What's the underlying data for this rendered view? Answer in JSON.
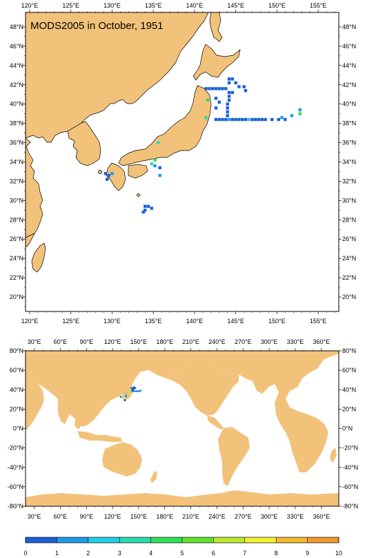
{
  "map1": {
    "title": "MODS2005 in October, 1951",
    "lon_labels": [
      "120°E",
      "125°E",
      "130°E",
      "135°E",
      "140°E",
      "145°E",
      "150°E",
      "155°E"
    ],
    "lat_labels": [
      "48°N",
      "46°N",
      "44°N",
      "42°N",
      "40°N",
      "38°N",
      "36°N",
      "34°N",
      "32°N",
      "30°N",
      "28°N",
      "26°N",
      "24°N",
      "22°N",
      "20°N"
    ],
    "lon_range": [
      119.5,
      157.5
    ],
    "lat_range": [
      18.5,
      49.5
    ],
    "land_color": "#f2c27a",
    "observations": [
      {
        "lon": 141.4,
        "lat": 41.6,
        "v": 0.5
      },
      {
        "lon": 141.8,
        "lat": 41.6,
        "v": 0.5
      },
      {
        "lon": 142.2,
        "lat": 41.6,
        "v": 0.5
      },
      {
        "lon": 142.6,
        "lat": 41.6,
        "v": 0.5
      },
      {
        "lon": 143.0,
        "lat": 41.6,
        "v": 0.5
      },
      {
        "lon": 143.4,
        "lat": 41.6,
        "v": 0.5
      },
      {
        "lon": 143.8,
        "lat": 41.6,
        "v": 0.5
      },
      {
        "lon": 144.2,
        "lat": 42.6,
        "v": 0.5
      },
      {
        "lon": 144.6,
        "lat": 42.6,
        "v": 0.5
      },
      {
        "lon": 144.2,
        "lat": 42.2,
        "v": 0.5
      },
      {
        "lon": 145.0,
        "lat": 42.2,
        "v": 0.5
      },
      {
        "lon": 145.4,
        "lat": 41.8,
        "v": 0.5
      },
      {
        "lon": 146.0,
        "lat": 41.8,
        "v": 0.5
      },
      {
        "lon": 146.2,
        "lat": 41.4,
        "v": 0.5
      },
      {
        "lon": 144.2,
        "lat": 41.2,
        "v": 0.5
      },
      {
        "lon": 144.6,
        "lat": 41.2,
        "v": 0.5
      },
      {
        "lon": 144.2,
        "lat": 40.8,
        "v": 0.5
      },
      {
        "lon": 144.2,
        "lat": 40.4,
        "v": 0.5
      },
      {
        "lon": 144.0,
        "lat": 40.0,
        "v": 0.5
      },
      {
        "lon": 144.0,
        "lat": 39.6,
        "v": 0.5
      },
      {
        "lon": 144.0,
        "lat": 39.2,
        "v": 0.5
      },
      {
        "lon": 144.0,
        "lat": 38.8,
        "v": 0.5
      },
      {
        "lon": 142.6,
        "lat": 40.6,
        "v": 0.5
      },
      {
        "lon": 143.0,
        "lat": 40.2,
        "v": 0.5
      },
      {
        "lon": 142.6,
        "lat": 39.6,
        "v": 0.5
      },
      {
        "lon": 142.6,
        "lat": 38.4,
        "v": 0.5
      },
      {
        "lon": 143.0,
        "lat": 38.4,
        "v": 0.5
      },
      {
        "lon": 143.4,
        "lat": 38.4,
        "v": 0.5
      },
      {
        "lon": 143.8,
        "lat": 38.4,
        "v": 0.5
      },
      {
        "lon": 144.2,
        "lat": 38.4,
        "v": 1.5
      },
      {
        "lon": 144.6,
        "lat": 38.4,
        "v": 0.5
      },
      {
        "lon": 145.0,
        "lat": 38.4,
        "v": 0.5
      },
      {
        "lon": 145.4,
        "lat": 38.4,
        "v": 0.5
      },
      {
        "lon": 145.8,
        "lat": 38.4,
        "v": 0.5
      },
      {
        "lon": 146.2,
        "lat": 38.4,
        "v": 0.5
      },
      {
        "lon": 146.6,
        "lat": 38.4,
        "v": 2.5
      },
      {
        "lon": 147.0,
        "lat": 38.4,
        "v": 0.5
      },
      {
        "lon": 147.4,
        "lat": 38.4,
        "v": 0.5
      },
      {
        "lon": 147.8,
        "lat": 38.4,
        "v": 0.5
      },
      {
        "lon": 148.2,
        "lat": 38.4,
        "v": 0.5
      },
      {
        "lon": 148.6,
        "lat": 38.4,
        "v": 0.5
      },
      {
        "lon": 149.4,
        "lat": 38.4,
        "v": 0.5
      },
      {
        "lon": 150.2,
        "lat": 38.4,
        "v": 0.5
      },
      {
        "lon": 150.6,
        "lat": 38.6,
        "v": 1.5
      },
      {
        "lon": 151.0,
        "lat": 38.4,
        "v": 0.5
      },
      {
        "lon": 151.8,
        "lat": 38.8,
        "v": 1.5
      },
      {
        "lon": 152.8,
        "lat": 39.0,
        "v": 4.5
      },
      {
        "lon": 152.8,
        "lat": 39.4,
        "v": 1.5
      },
      {
        "lon": 141.6,
        "lat": 40.4,
        "v": 4.5
      },
      {
        "lon": 141.4,
        "lat": 38.6,
        "v": 3.5
      },
      {
        "lon": 135.6,
        "lat": 36.0,
        "v": 3.5
      },
      {
        "lon": 135.2,
        "lat": 34.2,
        "v": 4.5
      },
      {
        "lon": 134.8,
        "lat": 33.8,
        "v": 3.5
      },
      {
        "lon": 135.2,
        "lat": 33.6,
        "v": 1.5
      },
      {
        "lon": 135.8,
        "lat": 33.4,
        "v": 0.5
      },
      {
        "lon": 135.8,
        "lat": 32.6,
        "v": 1.5
      },
      {
        "lon": 129.2,
        "lat": 32.8,
        "v": 0.5
      },
      {
        "lon": 129.6,
        "lat": 32.6,
        "v": 0.5
      },
      {
        "lon": 129.4,
        "lat": 32.2,
        "v": 0.5
      },
      {
        "lon": 130.0,
        "lat": 32.8,
        "v": 1.5
      },
      {
        "lon": 134.0,
        "lat": 29.4,
        "v": 0.5
      },
      {
        "lon": 134.4,
        "lat": 29.4,
        "v": 0.5
      },
      {
        "lon": 134.0,
        "lat": 29.0,
        "v": 0.5
      },
      {
        "lon": 134.8,
        "lat": 29.2,
        "v": 0.5
      },
      {
        "lon": 133.8,
        "lat": 28.8,
        "v": 0.5
      }
    ]
  },
  "map2": {
    "lon_labels": [
      "30°E",
      "60°E",
      "90°E",
      "120°E",
      "150°E",
      "180°E",
      "210°E",
      "240°E",
      "270°E",
      "300°E",
      "330°E",
      "360°E"
    ],
    "lat_labels": [
      "80°N",
      "60°N",
      "40°N",
      "20°N",
      "0°N",
      "-20°N",
      "-40°N",
      "-60°N",
      "-80°N"
    ],
    "lon_range": [
      20,
      380
    ],
    "lat_range": [
      -80,
      80
    ]
  },
  "colorbar": {
    "labels": [
      "0",
      "1",
      "2",
      "3",
      "4",
      "5",
      "6",
      "7",
      "8",
      "9",
      "10"
    ],
    "colors": [
      "#1a5fd6",
      "#1e9be8",
      "#22cfe8",
      "#26dcb0",
      "#2ee05a",
      "#5fe32c",
      "#b8e82e",
      "#f2f22e",
      "#f2b82e",
      "#f29a2e"
    ]
  }
}
